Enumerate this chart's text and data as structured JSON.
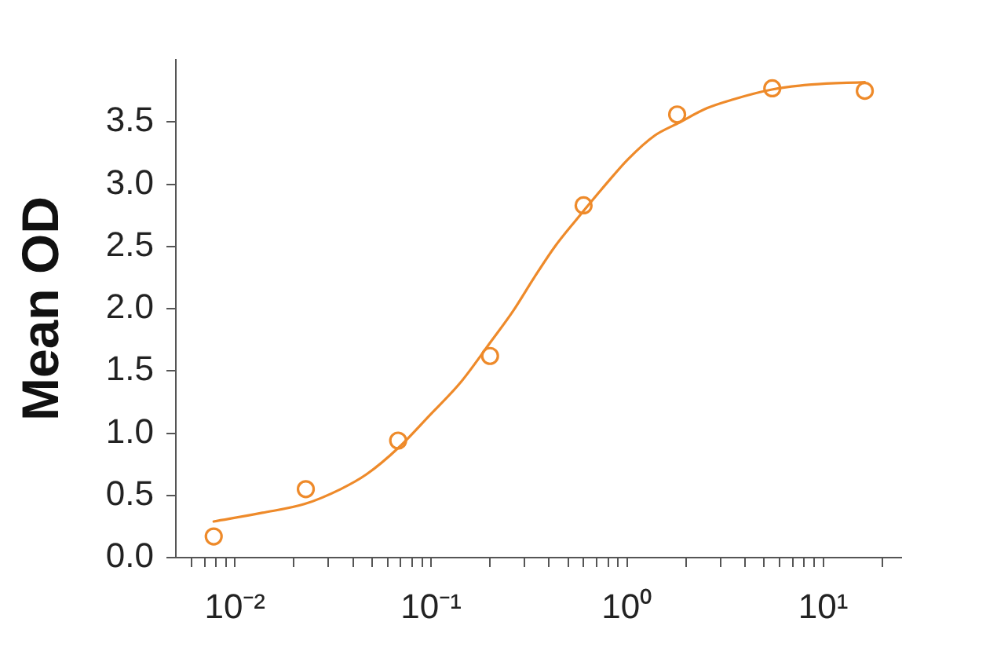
{
  "chart_data": {
    "type": "scatter",
    "ylabel": "Mean OD",
    "log": "x",
    "xlim": [
      0.005,
      25
    ],
    "xticks": [
      {
        "value": 0.006,
        "label": null
      },
      {
        "value": 0.007,
        "label": null
      },
      {
        "value": 0.008,
        "label": null
      },
      {
        "value": 0.009,
        "label": null
      },
      {
        "value": 0.01,
        "label": "10⁻²"
      },
      {
        "value": 0.02,
        "label": null
      },
      {
        "value": 0.03,
        "label": null
      },
      {
        "value": 0.04,
        "label": null
      },
      {
        "value": 0.05,
        "label": null
      },
      {
        "value": 0.06,
        "label": null
      },
      {
        "value": 0.07,
        "label": null
      },
      {
        "value": 0.08,
        "label": null
      },
      {
        "value": 0.09,
        "label": null
      },
      {
        "value": 0.1,
        "label": "10⁻¹"
      },
      {
        "value": 0.2,
        "label": null
      },
      {
        "value": 0.3,
        "label": null
      },
      {
        "value": 0.4,
        "label": null
      },
      {
        "value": 0.5,
        "label": null
      },
      {
        "value": 0.6,
        "label": null
      },
      {
        "value": 0.7,
        "label": null
      },
      {
        "value": 0.8,
        "label": null
      },
      {
        "value": 0.9,
        "label": null
      },
      {
        "value": 1,
        "label": "10⁰"
      },
      {
        "value": 2,
        "label": null
      },
      {
        "value": 3,
        "label": null
      },
      {
        "value": 4,
        "label": null
      },
      {
        "value": 5,
        "label": null
      },
      {
        "value": 6,
        "label": null
      },
      {
        "value": 7,
        "label": null
      },
      {
        "value": 8,
        "label": null
      },
      {
        "value": 9,
        "label": null
      },
      {
        "value": 10,
        "label": "10¹"
      },
      {
        "value": 20,
        "label": null
      }
    ],
    "ylim": [
      0,
      4
    ],
    "yticks": [
      {
        "value": 0,
        "label": "0.0"
      },
      0.5,
      {
        "value": 1,
        "label": "1.0"
      },
      1.5,
      {
        "value": 2,
        "label": "2.0"
      },
      2.5,
      {
        "value": 3,
        "label": "3.0"
      },
      3.5
    ],
    "series": [
      {
        "color": "#ee8a2a",
        "marker": "circle",
        "x": [
          0.0078,
          0.023,
          0.068,
          0.2,
          0.6,
          1.8,
          5.5,
          16.3
        ],
        "values": [
          0.17,
          0.55,
          0.94,
          1.62,
          2.83,
          3.56,
          3.77,
          3.75
        ]
      },
      {
        "type": "line",
        "color": "#ee8a2a",
        "marker": "none",
        "x": [
          0.0078,
          0.0138,
          0.0226,
          0.0346,
          0.047,
          0.068,
          0.098,
          0.142,
          0.201,
          0.262,
          0.336,
          0.429,
          0.548,
          0.79,
          1.01,
          1.38,
          1.82,
          2.55,
          3.46,
          5.48,
          8.7,
          16.3
        ],
        "values": [
          0.29,
          0.36,
          0.43,
          0.55,
          0.67,
          0.88,
          1.14,
          1.41,
          1.73,
          1.98,
          2.25,
          2.5,
          2.71,
          3.01,
          3.2,
          3.39,
          3.49,
          3.61,
          3.68,
          3.76,
          3.8,
          3.82
        ]
      }
    ]
  }
}
